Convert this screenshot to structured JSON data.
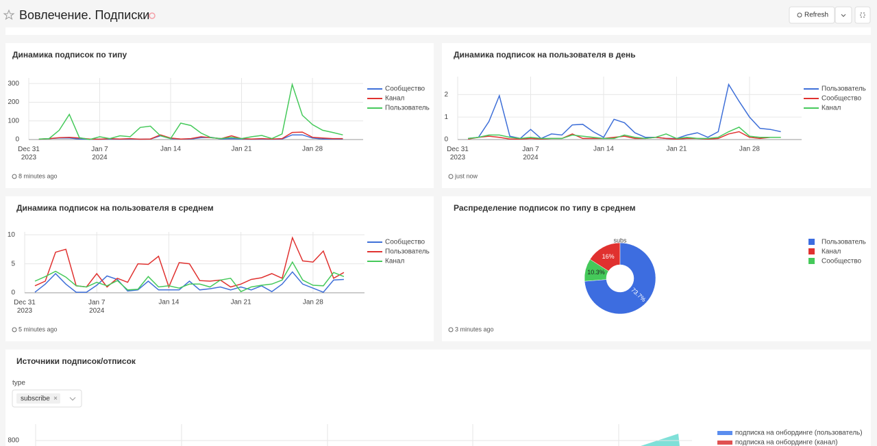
{
  "header": {
    "title": "Вовлечение. Подписки",
    "refresh": "Refresh"
  },
  "chart_data": [
    {
      "type": "line",
      "title": "Динамика подписок по типу",
      "updated": "8 minutes ago",
      "x": [
        "2024-01-01",
        "2024-01-02",
        "2024-01-03",
        "2024-01-04",
        "2024-01-05",
        "2024-01-06",
        "2024-01-07",
        "2024-01-08",
        "2024-01-09",
        "2024-01-10",
        "2024-01-11",
        "2024-01-12",
        "2024-01-13",
        "2024-01-14",
        "2024-01-15",
        "2024-01-16",
        "2024-01-17",
        "2024-01-18",
        "2024-01-19",
        "2024-01-20",
        "2024-01-21",
        "2024-01-22",
        "2024-01-23",
        "2024-01-24",
        "2024-01-25",
        "2024-01-26",
        "2024-01-27",
        "2024-01-28",
        "2024-01-29",
        "2024-01-30",
        "2024-01-31"
      ],
      "xlim": [
        "2023-12-31",
        "2024-02-02"
      ],
      "xticks": [
        {
          "value": "2023-12-31",
          "label": "Dec 31\n2023"
        },
        {
          "value": "2024-01-07",
          "label": "Jan 7\n2024"
        },
        {
          "value": "2024-01-14",
          "label": "Jan 14"
        },
        {
          "value": "2024-01-21",
          "label": "Jan 21"
        },
        {
          "value": "2024-01-28",
          "label": "Jan 28"
        }
      ],
      "ylim": [
        0,
        330
      ],
      "yticks": [
        0,
        100,
        200,
        300
      ],
      "grid": true,
      "series": [
        {
          "name": "Сообщество",
          "color": "#3e6fd8",
          "values": [
            2,
            5,
            8,
            8,
            3,
            2,
            2,
            3,
            2,
            3,
            2,
            3,
            20,
            5,
            3,
            3,
            10,
            12,
            3,
            5,
            3,
            2,
            3,
            2,
            3,
            25,
            25,
            8,
            3,
            3,
            3
          ]
        },
        {
          "name": "Канал",
          "color": "#e0312f",
          "values": [
            2,
            5,
            10,
            12,
            8,
            3,
            2,
            5,
            3,
            5,
            2,
            3,
            25,
            8,
            3,
            5,
            15,
            10,
            5,
            20,
            5,
            3,
            5,
            3,
            5,
            38,
            40,
            12,
            8,
            5,
            5
          ]
        },
        {
          "name": "Пользователь",
          "color": "#45c95a",
          "values": [
            3,
            5,
            50,
            135,
            10,
            0,
            15,
            5,
            20,
            15,
            65,
            72,
            20,
            5,
            88,
            75,
            35,
            10,
            5,
            12,
            5,
            15,
            22,
            5,
            30,
            295,
            130,
            80,
            50,
            38,
            25
          ]
        }
      ]
    },
    {
      "type": "line",
      "title": "Динамика подписок на пользователя в день",
      "updated": "just now",
      "x": [
        "2024-01-01",
        "2024-01-02",
        "2024-01-03",
        "2024-01-04",
        "2024-01-05",
        "2024-01-06",
        "2024-01-07",
        "2024-01-08",
        "2024-01-09",
        "2024-01-10",
        "2024-01-11",
        "2024-01-12",
        "2024-01-13",
        "2024-01-14",
        "2024-01-15",
        "2024-01-16",
        "2024-01-17",
        "2024-01-18",
        "2024-01-19",
        "2024-01-20",
        "2024-01-21",
        "2024-01-22",
        "2024-01-23",
        "2024-01-24",
        "2024-01-25",
        "2024-01-26",
        "2024-01-27",
        "2024-01-28",
        "2024-01-29",
        "2024-01-30",
        "2024-01-31"
      ],
      "xlim": [
        "2023-12-31",
        "2024-02-02"
      ],
      "xticks": [
        {
          "value": "2023-12-31",
          "label": "Dec 31\n2023"
        },
        {
          "value": "2024-01-07",
          "label": "Jan 7\n2024"
        },
        {
          "value": "2024-01-14",
          "label": "Jan 14"
        },
        {
          "value": "2024-01-21",
          "label": "Jan 21"
        },
        {
          "value": "2024-01-28",
          "label": "Jan 28"
        }
      ],
      "ylim": [
        0,
        2.8
      ],
      "yticks": [
        0,
        1,
        2
      ],
      "grid": true,
      "series": [
        {
          "name": "Пользователь",
          "color": "#3e6fd8",
          "values": [
            0.05,
            0.1,
            0.8,
            1.95,
            0.15,
            0.05,
            0.45,
            0.05,
            0.25,
            0.2,
            0.65,
            0.68,
            0.35,
            0.1,
            0.9,
            0.75,
            0.3,
            0.1,
            0.1,
            0.05,
            0.05,
            0.2,
            0.3,
            0.1,
            0.35,
            2.45,
            1.7,
            1.0,
            0.5,
            0.45,
            0.35
          ]
        },
        {
          "name": "Сообщество",
          "color": "#e0312f",
          "values": [
            0.02,
            0.1,
            0.15,
            0.1,
            0.02,
            0.02,
            0.05,
            0.02,
            0.05,
            0.05,
            0.25,
            0.05,
            0.05,
            0.05,
            0.1,
            0.15,
            0.05,
            0.05,
            0.1,
            0.05,
            0.02,
            0.05,
            0.05,
            0.02,
            0.05,
            0.25,
            0.35,
            0.1,
            0.05,
            0.1,
            0.1
          ]
        },
        {
          "name": "Канал",
          "color": "#45c95a",
          "values": [
            0.05,
            0.1,
            0.2,
            0.2,
            0.1,
            0.05,
            0.1,
            0.05,
            0.05,
            0.05,
            0.2,
            0.15,
            0.1,
            0.05,
            0.05,
            0.2,
            0.1,
            0.05,
            0.1,
            0.25,
            0.05,
            0.1,
            0.05,
            0.05,
            0.1,
            0.35,
            0.55,
            0.15,
            0.1,
            0.1,
            0.1
          ]
        }
      ]
    },
    {
      "type": "line",
      "title": "Динамика подписок на пользователя в среднем",
      "updated": "5 minutes ago",
      "x": [
        "2024-01-01",
        "2024-01-02",
        "2024-01-03",
        "2024-01-04",
        "2024-01-05",
        "2024-01-06",
        "2024-01-07",
        "2024-01-08",
        "2024-01-09",
        "2024-01-10",
        "2024-01-11",
        "2024-01-12",
        "2024-01-13",
        "2024-01-14",
        "2024-01-15",
        "2024-01-16",
        "2024-01-17",
        "2024-01-18",
        "2024-01-19",
        "2024-01-20",
        "2024-01-21",
        "2024-01-22",
        "2024-01-23",
        "2024-01-24",
        "2024-01-25",
        "2024-01-26",
        "2024-01-27",
        "2024-01-28",
        "2024-01-29",
        "2024-01-30",
        "2024-01-31"
      ],
      "xlim": [
        "2023-12-31",
        "2024-02-02"
      ],
      "xticks": [
        {
          "value": "2023-12-31",
          "label": "Dec 31\n2023"
        },
        {
          "value": "2024-01-07",
          "label": "Jan 7\n2024"
        },
        {
          "value": "2024-01-14",
          "label": "Jan 14"
        },
        {
          "value": "2024-01-21",
          "label": "Jan 21"
        },
        {
          "value": "2024-01-28",
          "label": "Jan 28"
        }
      ],
      "ylim": [
        0,
        10.5
      ],
      "yticks": [
        0,
        5,
        10
      ],
      "grid": true,
      "series": [
        {
          "name": "Сообщество",
          "color": "#3e6fd8",
          "values": [
            0.1,
            1.5,
            3.3,
            1.5,
            0.1,
            0.1,
            1.3,
            2.9,
            2.3,
            0.3,
            0.5,
            2,
            0.5,
            0.5,
            0.5,
            2,
            0.5,
            0.7,
            1,
            0.5,
            1,
            0.5,
            1.2,
            0.2,
            1.5,
            3.6,
            1.5,
            0.8,
            0.1,
            2.2,
            2.3
          ]
        },
        {
          "name": "Пользователь",
          "color": "#e0312f",
          "values": [
            1.2,
            2,
            7,
            7.5,
            1.2,
            1,
            3.3,
            1,
            2.5,
            1.8,
            5,
            4.9,
            6.3,
            1,
            5.2,
            5,
            2.1,
            2,
            2.2,
            1,
            1.5,
            2.3,
            2.6,
            3.3,
            2.5,
            9.5,
            5.5,
            5.3,
            7.2,
            2.5,
            3.5
          ]
        },
        {
          "name": "Канал",
          "color": "#45c95a",
          "values": [
            2,
            2.8,
            3.7,
            2.7,
            1.2,
            1,
            1.8,
            1.2,
            2.1,
            0.5,
            0.6,
            2.8,
            1,
            1.2,
            0.8,
            1.5,
            1.5,
            1,
            2.2,
            2.5,
            0.2,
            1,
            1.3,
            1.5,
            2.2,
            5.3,
            2.2,
            1.3,
            1.2,
            3.5,
            2.8
          ]
        }
      ]
    },
    {
      "type": "pie",
      "title": "Распределение подписок по типу в среднем",
      "updated": "3 minutes ago",
      "label": "subs",
      "categories": [
        "Пользователь",
        "Канал",
        "Сообщество"
      ],
      "values": [
        73.7,
        16,
        10.3
      ],
      "value_labels": [
        "73.7%",
        "16%",
        "10.3%"
      ],
      "colors": [
        "#3d6de0",
        "#e0312f",
        "#45c95a"
      ]
    },
    {
      "type": "area",
      "title": "Источники подписок/отписок",
      "filter": {
        "label": "type",
        "value": "subscribe"
      },
      "ylim": [
        0,
        820
      ],
      "yticks": [
        800
      ],
      "series": [
        {
          "name": "подписка на онбординге (пользователь)",
          "color": "#5b8def"
        },
        {
          "name": "подписка на онбординге (канал)",
          "color": "#e05252"
        }
      ]
    }
  ]
}
